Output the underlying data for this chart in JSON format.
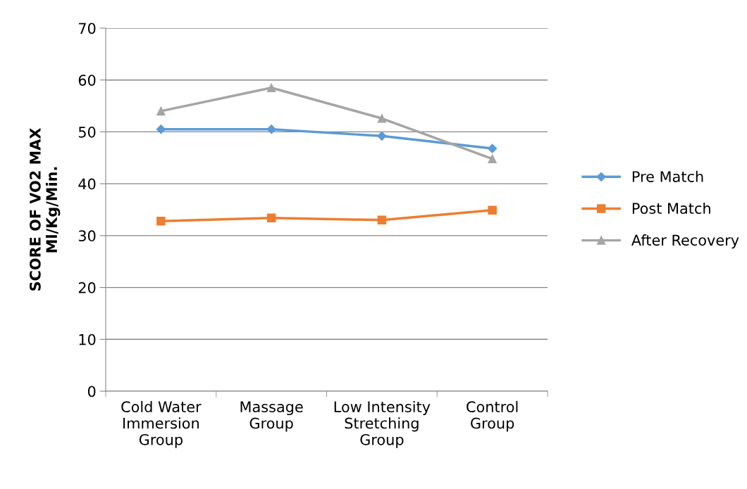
{
  "chart_data": {
    "type": "line",
    "ylabel": "SCORE OF VO2 MAX\nMl/Kg/Min.",
    "categories": [
      "Cold Water\nImmersion\nGroup",
      "Massage\nGroup",
      "Low Intensity\nStretching\nGroup",
      "Control\nGroup"
    ],
    "series": [
      {
        "name": "Pre Match",
        "color": "#5b9bd5",
        "marker": "diamond",
        "values": [
          50.5,
          50.5,
          49.2,
          46.8
        ]
      },
      {
        "name": "Post Match",
        "color": "#ed7d31",
        "marker": "square",
        "values": [
          32.8,
          33.4,
          33.0,
          34.9
        ]
      },
      {
        "name": "After Recovery",
        "color": "#a5a5a5",
        "marker": "triangle",
        "values": [
          54.0,
          58.5,
          52.6,
          44.8
        ]
      }
    ],
    "ylim": [
      0,
      70
    ],
    "yticks": [
      0,
      10,
      20,
      30,
      40,
      50,
      60,
      70
    ],
    "grid": "y",
    "legend": "right",
    "line_style": "solid"
  }
}
